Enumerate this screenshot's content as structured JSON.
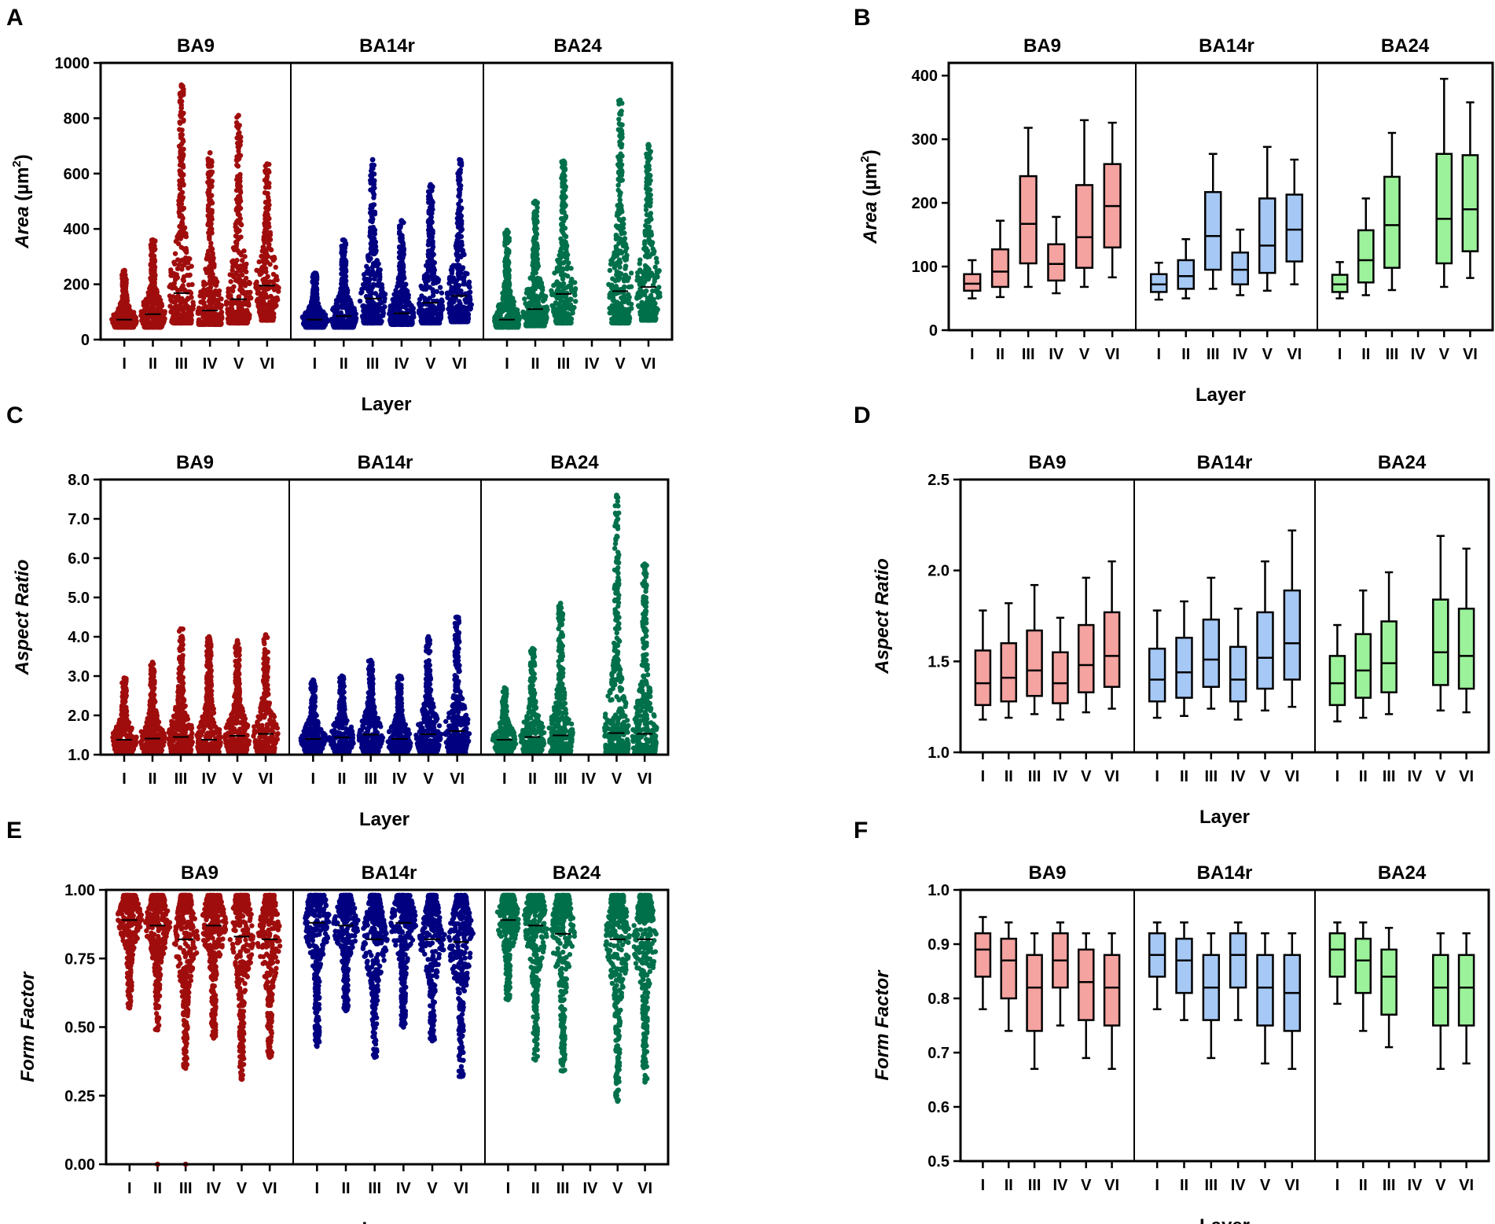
{
  "chart_data": [
    {
      "panel": "A",
      "type": "scatter",
      "style": "dot-strip",
      "regions": [
        "BA9",
        "BA14r",
        "BA24"
      ],
      "categories": [
        "I",
        "II",
        "III",
        "IV",
        "V",
        "VI"
      ],
      "xlabel": "Layer",
      "ylabel_main": "Area",
      "ylabel_unit": " (µm",
      "ylabel_sup": "2",
      "ylabel_close": ")",
      "ylim": [
        0,
        1000
      ],
      "yticks": [
        0,
        200,
        400,
        600,
        800,
        1000
      ],
      "yticklabels": [
        "0",
        "200",
        "400",
        "600",
        "800",
        "1000"
      ],
      "colors": [
        "#a00d0d",
        "#000080",
        "#00704a"
      ],
      "series": [
        {
          "name": "BA9",
          "median": [
            72,
            92,
            168,
            105,
            146,
            195
          ],
          "min": [
            45,
            45,
            60,
            55,
            60,
            70
          ],
          "max": [
            250,
            360,
            920,
            675,
            810,
            635
          ]
        },
        {
          "name": "BA14r",
          "median": [
            72,
            85,
            148,
            95,
            133,
            158
          ],
          "min": [
            45,
            45,
            60,
            55,
            60,
            65
          ],
          "max": [
            240,
            360,
            650,
            430,
            560,
            650
          ]
        },
        {
          "name": "BA24",
          "median": [
            72,
            110,
            165,
            null,
            175,
            190
          ],
          "min": [
            45,
            50,
            60,
            null,
            60,
            70
          ],
          "max": [
            395,
            500,
            645,
            null,
            865,
            705
          ]
        }
      ]
    },
    {
      "panel": "B",
      "type": "box",
      "regions": [
        "BA9",
        "BA14r",
        "BA24"
      ],
      "categories": [
        "I",
        "II",
        "III",
        "IV",
        "V",
        "VI"
      ],
      "xlabel": "Layer",
      "ylabel_main": "Area",
      "ylabel_unit": " (µm",
      "ylabel_sup": "2",
      "ylabel_close": ")",
      "ylim": [
        0,
        420
      ],
      "yticks": [
        0,
        100,
        200,
        300,
        400
      ],
      "yticklabels": [
        "0",
        "100",
        "200",
        "300",
        "400"
      ],
      "colors": [
        "#f5a3a0",
        "#a6c8f5",
        "#9cf29a"
      ],
      "series": [
        {
          "name": "BA9",
          "boxes": [
            {
              "min": 50,
              "q1": 62,
              "median": 73,
              "q3": 88,
              "max": 110
            },
            {
              "min": 52,
              "q1": 68,
              "median": 92,
              "q3": 127,
              "max": 172
            },
            {
              "min": 68,
              "q1": 105,
              "median": 167,
              "q3": 242,
              "max": 318
            },
            {
              "min": 58,
              "q1": 78,
              "median": 104,
              "q3": 135,
              "max": 178
            },
            {
              "min": 68,
              "q1": 98,
              "median": 146,
              "q3": 228,
              "max": 330
            },
            {
              "min": 83,
              "q1": 130,
              "median": 195,
              "q3": 261,
              "max": 326
            }
          ]
        },
        {
          "name": "BA14r",
          "boxes": [
            {
              "min": 48,
              "q1": 60,
              "median": 72,
              "q3": 88,
              "max": 106
            },
            {
              "min": 50,
              "q1": 65,
              "median": 85,
              "q3": 110,
              "max": 143
            },
            {
              "min": 65,
              "q1": 95,
              "median": 148,
              "q3": 217,
              "max": 277
            },
            {
              "min": 55,
              "q1": 72,
              "median": 95,
              "q3": 122,
              "max": 158
            },
            {
              "min": 62,
              "q1": 90,
              "median": 133,
              "q3": 207,
              "max": 288
            },
            {
              "min": 72,
              "q1": 108,
              "median": 158,
              "q3": 213,
              "max": 268
            }
          ]
        },
        {
          "name": "BA24",
          "boxes": [
            {
              "min": 50,
              "q1": 60,
              "median": 72,
              "q3": 87,
              "max": 107
            },
            {
              "min": 55,
              "q1": 75,
              "median": 110,
              "q3": 157,
              "max": 207
            },
            {
              "min": 63,
              "q1": 98,
              "median": 165,
              "q3": 241,
              "max": 310
            },
            null,
            {
              "min": 68,
              "q1": 105,
              "median": 175,
              "q3": 277,
              "max": 395
            },
            {
              "min": 82,
              "q1": 124,
              "median": 190,
              "q3": 275,
              "max": 358
            }
          ]
        }
      ]
    },
    {
      "panel": "C",
      "type": "scatter",
      "style": "dot-strip",
      "regions": [
        "BA9",
        "BA14r",
        "BA24"
      ],
      "categories": [
        "I",
        "II",
        "III",
        "IV",
        "V",
        "VI"
      ],
      "xlabel": "Layer",
      "ylabel_main": "Aspect Ratio",
      "ylim": [
        1.0,
        8.0
      ],
      "yticks": [
        1,
        2,
        3,
        4,
        5,
        6,
        7,
        8
      ],
      "yticklabels": [
        "1.0",
        "2.0",
        "3.0",
        "4.0",
        "5.0",
        "6.0",
        "7.0",
        "8.0"
      ],
      "colors": [
        "#a00d0d",
        "#000080",
        "#00704a"
      ],
      "series": [
        {
          "name": "BA9",
          "median": [
            1.38,
            1.41,
            1.45,
            1.38,
            1.48,
            1.53
          ],
          "min": [
            1.05,
            1.05,
            1.05,
            1.05,
            1.05,
            1.05
          ],
          "max": [
            2.95,
            3.35,
            4.2,
            4.0,
            3.9,
            4.05
          ]
        },
        {
          "name": "BA14r",
          "median": [
            1.4,
            1.44,
            1.51,
            1.4,
            1.52,
            1.6
          ],
          "min": [
            1.05,
            1.05,
            1.05,
            1.05,
            1.05,
            1.05
          ],
          "max": [
            2.9,
            3.0,
            3.4,
            3.0,
            4.0,
            4.5
          ]
        },
        {
          "name": "BA24",
          "median": [
            1.38,
            1.45,
            1.49,
            null,
            1.55,
            1.53
          ],
          "min": [
            1.05,
            1.05,
            1.05,
            null,
            1.05,
            1.05
          ],
          "max": [
            2.7,
            3.7,
            4.85,
            null,
            7.6,
            5.85
          ]
        }
      ]
    },
    {
      "panel": "D",
      "type": "box",
      "regions": [
        "BA9",
        "BA14r",
        "BA24"
      ],
      "categories": [
        "I",
        "II",
        "III",
        "IV",
        "V",
        "VI"
      ],
      "xlabel": "Layer",
      "ylabel_main": "Aspect Ratio",
      "ylim": [
        1.0,
        2.5
      ],
      "yticks": [
        1.0,
        1.5,
        2.0,
        2.5
      ],
      "yticklabels": [
        "1.0",
        "1.5",
        "2.0",
        "2.5"
      ],
      "colors": [
        "#f5a3a0",
        "#a6c8f5",
        "#9cf29a"
      ],
      "series": [
        {
          "name": "BA9",
          "boxes": [
            {
              "min": 1.18,
              "q1": 1.26,
              "median": 1.38,
              "q3": 1.56,
              "max": 1.78
            },
            {
              "min": 1.19,
              "q1": 1.28,
              "median": 1.41,
              "q3": 1.6,
              "max": 1.82
            },
            {
              "min": 1.21,
              "q1": 1.31,
              "median": 1.45,
              "q3": 1.67,
              "max": 1.92
            },
            {
              "min": 1.18,
              "q1": 1.27,
              "median": 1.38,
              "q3": 1.55,
              "max": 1.74
            },
            {
              "min": 1.22,
              "q1": 1.33,
              "median": 1.48,
              "q3": 1.7,
              "max": 1.96
            },
            {
              "min": 1.24,
              "q1": 1.36,
              "median": 1.53,
              "q3": 1.77,
              "max": 2.05
            }
          ]
        },
        {
          "name": "BA14r",
          "boxes": [
            {
              "min": 1.19,
              "q1": 1.28,
              "median": 1.4,
              "q3": 1.57,
              "max": 1.78
            },
            {
              "min": 1.2,
              "q1": 1.3,
              "median": 1.44,
              "q3": 1.63,
              "max": 1.83
            },
            {
              "min": 1.24,
              "q1": 1.36,
              "median": 1.51,
              "q3": 1.73,
              "max": 1.96
            },
            {
              "min": 1.18,
              "q1": 1.28,
              "median": 1.4,
              "q3": 1.58,
              "max": 1.79
            },
            {
              "min": 1.23,
              "q1": 1.35,
              "median": 1.52,
              "q3": 1.77,
              "max": 2.05
            },
            {
              "min": 1.25,
              "q1": 1.4,
              "median": 1.6,
              "q3": 1.89,
              "max": 2.22
            }
          ]
        },
        {
          "name": "BA24",
          "boxes": [
            {
              "min": 1.17,
              "q1": 1.26,
              "median": 1.38,
              "q3": 1.53,
              "max": 1.7
            },
            {
              "min": 1.19,
              "q1": 1.3,
              "median": 1.45,
              "q3": 1.65,
              "max": 1.89
            },
            {
              "min": 1.21,
              "q1": 1.33,
              "median": 1.49,
              "q3": 1.72,
              "max": 1.99
            },
            null,
            {
              "min": 1.23,
              "q1": 1.37,
              "median": 1.55,
              "q3": 1.84,
              "max": 2.19
            },
            {
              "min": 1.22,
              "q1": 1.35,
              "median": 1.53,
              "q3": 1.79,
              "max": 2.12
            }
          ]
        }
      ]
    },
    {
      "panel": "E",
      "type": "scatter",
      "style": "dot-strip",
      "regions": [
        "BA9",
        "BA14r",
        "BA24"
      ],
      "categories": [
        "I",
        "II",
        "III",
        "IV",
        "V",
        "VI"
      ],
      "xlabel": "Layer",
      "ylabel_main": "Form Factor",
      "ylim": [
        0,
        1.0
      ],
      "yticks": [
        0,
        0.25,
        0.5,
        0.75,
        1.0
      ],
      "yticklabels": [
        "0.00",
        "0.25",
        "0.50",
        "0.75",
        "1.00"
      ],
      "colors": [
        "#a00d0d",
        "#000080",
        "#00704a"
      ],
      "series": [
        {
          "name": "BA9",
          "median": [
            0.89,
            0.87,
            0.82,
            0.87,
            0.83,
            0.82
          ],
          "min": [
            0.57,
            0.49,
            0.35,
            0.46,
            0.31,
            0.39
          ],
          "max": [
            0.98,
            0.98,
            0.98,
            0.98,
            0.98,
            0.98
          ],
          "outliers": [
            [],
            [
              0.0
            ],
            [
              0.0
            ],
            [],
            [],
            []
          ]
        },
        {
          "name": "BA14r",
          "median": [
            0.88,
            0.87,
            0.82,
            0.88,
            0.82,
            0.81
          ],
          "min": [
            0.43,
            0.56,
            0.39,
            0.5,
            0.45,
            0.32
          ],
          "max": [
            0.98,
            0.98,
            0.98,
            0.98,
            0.98,
            0.98
          ]
        },
        {
          "name": "BA24",
          "median": [
            0.89,
            0.87,
            0.84,
            null,
            0.82,
            0.82
          ],
          "min": [
            0.6,
            0.38,
            0.34,
            null,
            0.23,
            0.3
          ],
          "max": [
            0.98,
            0.98,
            0.98,
            null,
            0.98,
            0.98
          ]
        }
      ]
    },
    {
      "panel": "F",
      "type": "box",
      "regions": [
        "BA9",
        "BA14r",
        "BA24"
      ],
      "categories": [
        "I",
        "II",
        "III",
        "IV",
        "V",
        "VI"
      ],
      "xlabel": "Layer",
      "ylabel_main": "Form Factor",
      "ylim": [
        0.5,
        1.0
      ],
      "yticks": [
        0.5,
        0.6,
        0.7,
        0.8,
        0.9,
        1.0
      ],
      "yticklabels": [
        "0.5",
        "0.6",
        "0.7",
        "0.8",
        "0.9",
        "1.0"
      ],
      "colors": [
        "#f5a3a0",
        "#a6c8f5",
        "#9cf29a"
      ],
      "series": [
        {
          "name": "BA9",
          "boxes": [
            {
              "min": 0.78,
              "q1": 0.84,
              "median": 0.89,
              "q3": 0.92,
              "max": 0.95
            },
            {
              "min": 0.74,
              "q1": 0.8,
              "median": 0.87,
              "q3": 0.91,
              "max": 0.94
            },
            {
              "min": 0.67,
              "q1": 0.74,
              "median": 0.82,
              "q3": 0.88,
              "max": 0.92
            },
            {
              "min": 0.75,
              "q1": 0.82,
              "median": 0.87,
              "q3": 0.92,
              "max": 0.94
            },
            {
              "min": 0.69,
              "q1": 0.76,
              "median": 0.83,
              "q3": 0.89,
              "max": 0.92
            },
            {
              "min": 0.67,
              "q1": 0.75,
              "median": 0.82,
              "q3": 0.88,
              "max": 0.92
            }
          ]
        },
        {
          "name": "BA14r",
          "boxes": [
            {
              "min": 0.78,
              "q1": 0.84,
              "median": 0.88,
              "q3": 0.92,
              "max": 0.94
            },
            {
              "min": 0.76,
              "q1": 0.81,
              "median": 0.87,
              "q3": 0.91,
              "max": 0.94
            },
            {
              "min": 0.69,
              "q1": 0.76,
              "median": 0.82,
              "q3": 0.88,
              "max": 0.92
            },
            {
              "min": 0.76,
              "q1": 0.82,
              "median": 0.88,
              "q3": 0.92,
              "max": 0.94
            },
            {
              "min": 0.68,
              "q1": 0.75,
              "median": 0.82,
              "q3": 0.88,
              "max": 0.92
            },
            {
              "min": 0.67,
              "q1": 0.74,
              "median": 0.81,
              "q3": 0.88,
              "max": 0.92
            }
          ]
        },
        {
          "name": "BA24",
          "boxes": [
            {
              "min": 0.79,
              "q1": 0.84,
              "median": 0.89,
              "q3": 0.92,
              "max": 0.94
            },
            {
              "min": 0.74,
              "q1": 0.81,
              "median": 0.87,
              "q3": 0.91,
              "max": 0.94
            },
            {
              "min": 0.71,
              "q1": 0.77,
              "median": 0.84,
              "q3": 0.89,
              "max": 0.93
            },
            null,
            {
              "min": 0.67,
              "q1": 0.75,
              "median": 0.82,
              "q3": 0.88,
              "max": 0.92
            },
            {
              "min": 0.68,
              "q1": 0.75,
              "median": 0.82,
              "q3": 0.88,
              "max": 0.92
            }
          ]
        }
      ]
    }
  ]
}
